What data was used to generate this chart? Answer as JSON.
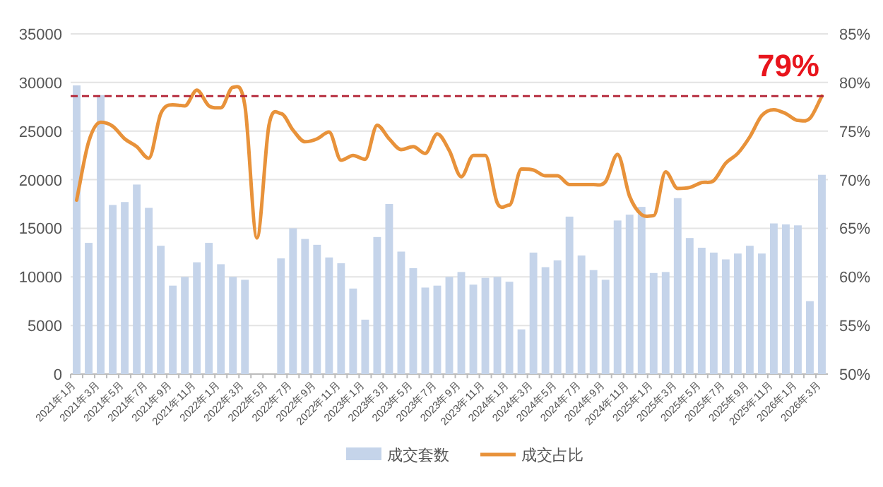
{
  "chart_data": {
    "type": "bar",
    "categories": [
      "2021年1月",
      null,
      "2021年3月",
      null,
      "2021年5月",
      null,
      "2021年7月",
      null,
      "2021年9月",
      null,
      "2021年11月",
      null,
      "2022年1月",
      null,
      "2022年3月",
      null,
      "2022年5月",
      null,
      "2022年7月",
      null,
      "2022年9月",
      null,
      "2022年11月",
      null,
      "2023年1月",
      null,
      "2023年3月",
      null,
      "2023年5月",
      null,
      "2023年7月",
      null,
      "2023年9月",
      null,
      "2023年11月",
      null,
      "2024年1月",
      null,
      "2024年3月",
      null,
      "2024年5月",
      null,
      "2024年7月",
      null,
      "2024年9月",
      null,
      "2024年11月",
      null,
      "2025年1月",
      null,
      "2025年3月",
      null,
      "2025年5月",
      null,
      "2025年7月",
      null,
      "2025年9月",
      null,
      "2025年11月",
      null,
      "2026年1月",
      null,
      "2026年3月"
    ],
    "series": [
      {
        "name": "成交套数",
        "color": "#c5d4ea",
        "values": [
          29700,
          13500,
          28700,
          17400,
          17700,
          19500,
          17100,
          13200,
          9100,
          10000,
          11500,
          13500,
          11300,
          10000,
          9700,
          null,
          null,
          11900,
          15000,
          13900,
          13300,
          12000,
          11400,
          8800,
          5600,
          14100,
          17500,
          12600,
          10900,
          8900,
          9100,
          10000,
          10500,
          9200,
          9900,
          10000,
          9500,
          4600,
          12500,
          11000,
          11700,
          16200,
          12200,
          10700,
          9700,
          15800,
          16400,
          17200,
          10400,
          10500,
          18100,
          14000,
          13000,
          12500,
          11800,
          12400,
          13200,
          12400,
          15500,
          15400,
          15300,
          7500,
          20500
        ]
      },
      {
        "name": "成交占比",
        "type": "line",
        "axis": "y2",
        "color": "#e8923a",
        "values": [
          67.9,
          73.9,
          75.9,
          75.5,
          74.2,
          73.4,
          72.2,
          76.8,
          77.7,
          77.6,
          79.2,
          77.6,
          77.4,
          79.5,
          77.6,
          64.0,
          75.6,
          76.8,
          75.1,
          73.9,
          74.2,
          74.9,
          72.0,
          72.5,
          72.1,
          75.6,
          74.2,
          73.1,
          73.4,
          72.7,
          74.7,
          73.0,
          70.3,
          72.5,
          72.5,
          67.6,
          67.4,
          71.1,
          71.0,
          70.4,
          70.4,
          69.5,
          69.5,
          69.5,
          69.8,
          72.6,
          68.3,
          66.4,
          66.3,
          70.8,
          69.1,
          69.2,
          69.7,
          69.9,
          71.7,
          72.7,
          74.4,
          76.6,
          77.2,
          76.8,
          76.1,
          76.3,
          78.6
        ]
      }
    ],
    "ylim": [
      0,
      35000
    ],
    "yticks": [
      0,
      5000,
      10000,
      15000,
      20000,
      25000,
      30000,
      35000
    ],
    "y2lim": [
      50,
      85
    ],
    "y2ticks": [
      {
        "value": 50,
        "label": "50%"
      },
      {
        "value": 55,
        "label": "55%"
      },
      {
        "value": 60,
        "label": "60%"
      },
      {
        "value": 65,
        "label": "65%"
      },
      {
        "value": 70,
        "label": "70%"
      },
      {
        "value": 75,
        "label": "75%"
      },
      {
        "value": 80,
        "label": "80%"
      },
      {
        "value": 85,
        "label": "85%"
      }
    ],
    "ref_lines": [
      {
        "axis": "y2",
        "value": 78.6,
        "color": "#b22234",
        "line_style": "dashed"
      }
    ],
    "annotations": [
      "79%"
    ],
    "grid": "y",
    "legend": "bottom"
  }
}
